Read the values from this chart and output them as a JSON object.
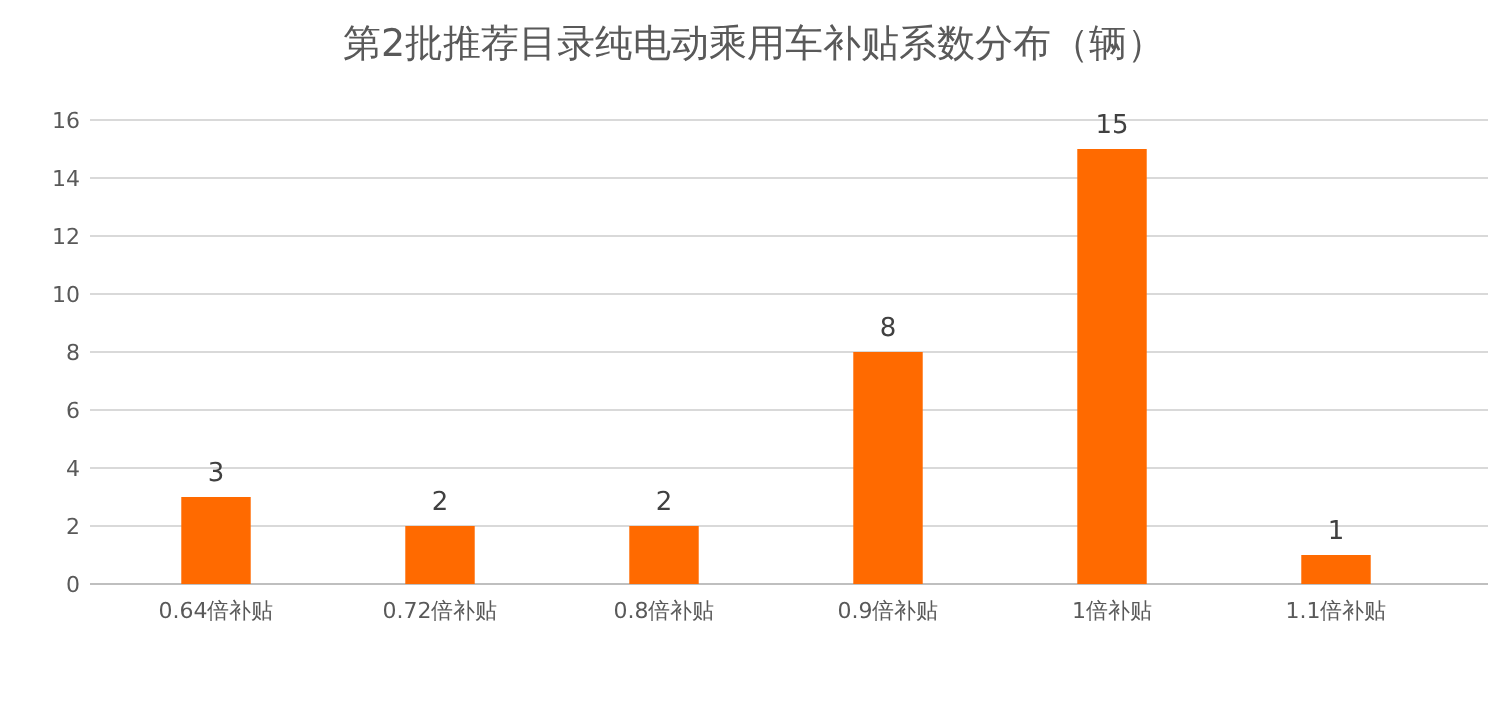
{
  "chart_data": {
    "type": "bar",
    "title": "第2批推荐目录纯电动乘用车补贴系数分布（辆）",
    "categories": [
      "0.64倍补贴",
      "0.72倍补贴",
      "0.8倍补贴",
      "0.9倍补贴",
      "1倍补贴",
      "1.1倍补贴"
    ],
    "values": [
      3,
      2,
      2,
      8,
      15,
      1
    ],
    "color": "#ff6a00",
    "ylim": [
      0,
      16
    ],
    "yticks": [
      0,
      2,
      4,
      6,
      8,
      10,
      12,
      14,
      16
    ],
    "grid": "y",
    "data_labels": true
  }
}
